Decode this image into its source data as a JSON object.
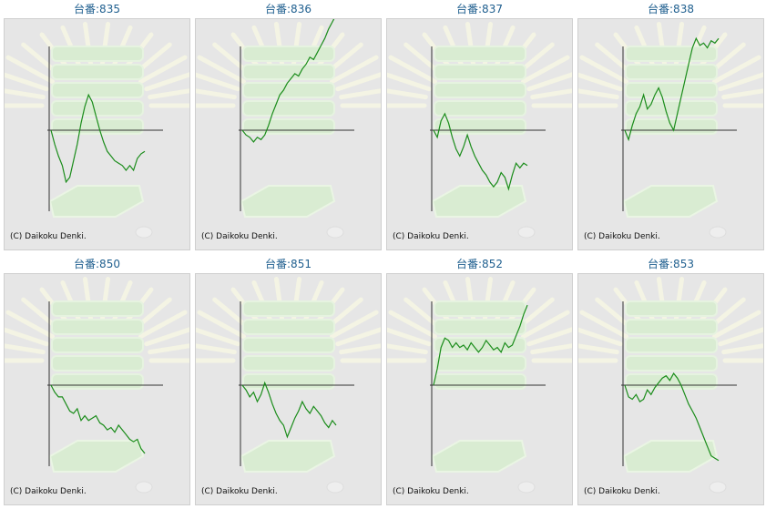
{
  "copyright": "(C) Daikoku Denki.",
  "colors": {
    "line": "#1a8c1a",
    "axis": "#333333",
    "background": "#e6e6e6",
    "title": "#1f5f8f"
  },
  "chart_data": [
    {
      "type": "line",
      "title": "台番:835",
      "x": [
        0,
        1,
        2,
        3,
        4,
        5,
        6,
        7,
        8,
        9,
        10,
        11,
        12,
        13,
        14,
        15,
        16,
        17,
        18,
        19,
        20,
        21,
        22,
        23,
        24,
        25
      ],
      "values": [
        0,
        -600,
        -1100,
        -1500,
        -2200,
        -2000,
        -1300,
        -600,
        300,
        1000,
        1500,
        1200,
        600,
        0,
        -500,
        -900,
        -1100,
        -1300,
        -1400,
        -1500,
        -1700,
        -1500,
        -1700,
        -1200,
        -1000,
        -900
      ]
    },
    {
      "type": "line",
      "title": "台番:836",
      "x": [
        0,
        1,
        2,
        3,
        4,
        5,
        6,
        7,
        8,
        9,
        10,
        11,
        12,
        13,
        14,
        15,
        16,
        17,
        18,
        19,
        20,
        21,
        22,
        23,
        24,
        25
      ],
      "values": [
        0,
        -200,
        -300,
        -500,
        -300,
        -400,
        -200,
        200,
        700,
        1100,
        1500,
        1700,
        2000,
        2200,
        2400,
        2300,
        2600,
        2800,
        3100,
        3000,
        3300,
        3600,
        3900,
        4300,
        4600,
        4900
      ]
    },
    {
      "type": "line",
      "title": "台番:837",
      "x": [
        0,
        1,
        2,
        3,
        4,
        5,
        6,
        7,
        8,
        9,
        10,
        11,
        12,
        13,
        14,
        15,
        16,
        17,
        18,
        19,
        20,
        21,
        22,
        23,
        24,
        25
      ],
      "values": [
        0,
        -300,
        400,
        700,
        300,
        -300,
        -800,
        -1100,
        -700,
        -200,
        -700,
        -1100,
        -1400,
        -1700,
        -1900,
        -2200,
        -2400,
        -2200,
        -1800,
        -2000,
        -2500,
        -1900,
        -1400,
        -1600,
        -1400,
        -1500
      ]
    },
    {
      "type": "line",
      "title": "台番:838",
      "x": [
        0,
        1,
        2,
        3,
        4,
        5,
        6,
        7,
        8,
        9,
        10,
        11,
        12,
        13,
        14,
        15,
        16,
        17,
        18,
        19,
        20,
        21,
        22,
        23,
        24,
        25
      ],
      "values": [
        0,
        -400,
        200,
        700,
        1000,
        1500,
        900,
        1100,
        1500,
        1800,
        1400,
        800,
        300,
        0,
        700,
        1400,
        2100,
        2800,
        3500,
        3900,
        3600,
        3700,
        3500,
        3800,
        3700,
        3900
      ]
    },
    {
      "type": "line",
      "title": "台番:850",
      "x": [
        0,
        1,
        2,
        3,
        4,
        5,
        6,
        7,
        8,
        9,
        10,
        11,
        12,
        13,
        14,
        15,
        16,
        17,
        18,
        19,
        20,
        21,
        22,
        23,
        24,
        25
      ],
      "values": [
        0,
        -300,
        -500,
        -500,
        -800,
        -1100,
        -1200,
        -1000,
        -1500,
        -1300,
        -1500,
        -1400,
        -1300,
        -1600,
        -1700,
        -1900,
        -1800,
        -2000,
        -1700,
        -1900,
        -2100,
        -2300,
        -2400,
        -2300,
        -2700,
        -2900
      ]
    },
    {
      "type": "line",
      "title": "台番:851",
      "x": [
        0,
        1,
        2,
        3,
        4,
        5,
        6,
        7,
        8,
        9,
        10,
        11,
        12,
        13,
        14,
        15,
        16,
        17,
        18,
        19,
        20,
        21,
        22,
        23,
        24,
        25
      ],
      "values": [
        0,
        -200,
        -500,
        -300,
        -700,
        -400,
        100,
        -300,
        -800,
        -1200,
        -1500,
        -1700,
        -2200,
        -1800,
        -1400,
        -1100,
        -700,
        -1000,
        -1200,
        -900,
        -1100,
        -1300,
        -1600,
        -1800,
        -1500,
        -1700
      ]
    },
    {
      "type": "line",
      "title": "台番:852",
      "x": [
        0,
        1,
        2,
        3,
        4,
        5,
        6,
        7,
        8,
        9,
        10,
        11,
        12,
        13,
        14,
        15,
        16,
        17,
        18,
        19,
        20,
        21,
        22,
        23,
        24,
        25
      ],
      "values": [
        0,
        700,
        1600,
        2000,
        1900,
        1600,
        1800,
        1600,
        1700,
        1500,
        1800,
        1600,
        1400,
        1600,
        1900,
        1700,
        1500,
        1600,
        1400,
        1800,
        1600,
        1700,
        2100,
        2500,
        3000,
        3400
      ]
    },
    {
      "type": "line",
      "title": "台番:853",
      "x": [
        0,
        1,
        2,
        3,
        4,
        5,
        6,
        7,
        8,
        9,
        10,
        11,
        12,
        13,
        14,
        15,
        16,
        17,
        18,
        19,
        20,
        21,
        22,
        23,
        24,
        25
      ],
      "values": [
        0,
        -500,
        -600,
        -400,
        -700,
        -600,
        -200,
        -400,
        -100,
        100,
        300,
        400,
        200,
        500,
        300,
        0,
        -400,
        -800,
        -1100,
        -1400,
        -1800,
        -2200,
        -2600,
        -3000,
        -3100,
        -3200
      ]
    }
  ]
}
